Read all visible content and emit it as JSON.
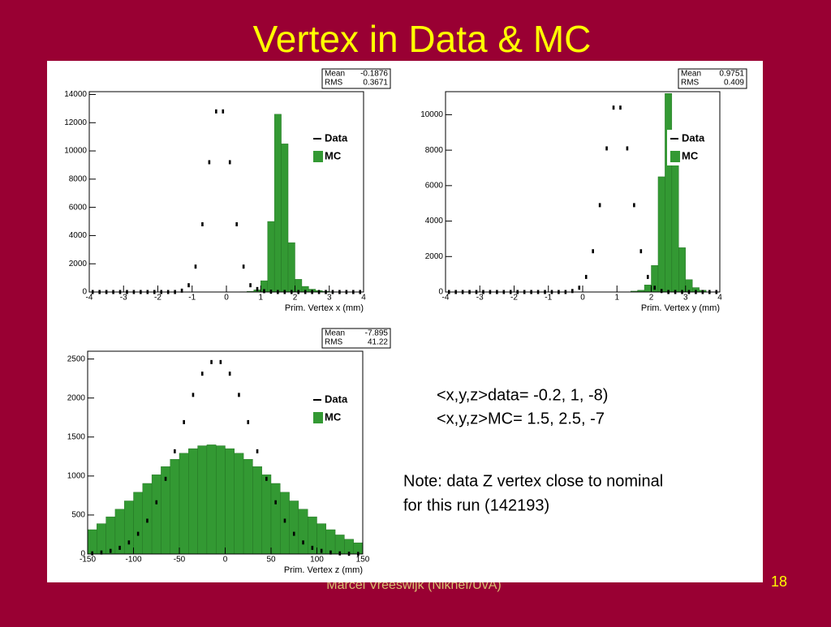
{
  "title": "Vertex in Data & MC",
  "chart_data": [
    {
      "type": "histogram",
      "xlabel": "Prim. Vertex x (mm)",
      "bins": [
        -4,
        -3.8,
        -3.6,
        -3.4,
        -3.2,
        -3,
        -2.8,
        -2.6,
        -2.4,
        -2.2,
        -2,
        -1.8,
        -1.6,
        -1.4,
        -1.2,
        -1,
        -0.8,
        -0.6,
        -0.4,
        -0.2,
        0,
        0.2,
        0.4,
        0.6,
        0.8,
        1,
        1.2,
        1.4,
        1.6,
        1.8,
        2,
        2.2,
        2.4,
        2.6,
        2.8,
        3,
        3.2,
        3.4,
        3.6,
        3.8,
        4
      ],
      "series": [
        {
          "name": "Data",
          "color": "#000000",
          "style": "points",
          "values": [
            0,
            0,
            0,
            0,
            0,
            0,
            0,
            0,
            0,
            0,
            0,
            0,
            0,
            95,
            480,
            1800,
            4800,
            9200,
            12800,
            12800,
            9200,
            4800,
            1800,
            480,
            210,
            60,
            20,
            0,
            0,
            0,
            0,
            0,
            0,
            0,
            0,
            0,
            0,
            0,
            0,
            0
          ]
        },
        {
          "name": "MC",
          "color": "#339933",
          "style": "filled",
          "values": [
            0,
            0,
            0,
            0,
            0,
            0,
            0,
            0,
            0,
            0,
            0,
            0,
            0,
            0,
            0,
            0,
            0,
            0,
            0,
            0,
            0,
            0,
            20,
            50,
            150,
            800,
            5000,
            12600,
            10500,
            3500,
            900,
            400,
            200,
            100,
            50,
            20,
            0,
            0,
            0,
            0
          ]
        }
      ],
      "xlim": [
        -4,
        4
      ],
      "xticks": [
        -4,
        -3,
        -2,
        -1,
        0,
        1,
        2,
        3,
        4
      ],
      "ylim": [
        0,
        14200
      ],
      "yticks": [
        0,
        2000,
        4000,
        6000,
        8000,
        10000,
        12000,
        14000
      ],
      "stats": [
        {
          "label": "Mean",
          "value": -0.1876
        },
        {
          "label": "RMS",
          "value": 0.3671
        }
      ]
    },
    {
      "type": "histogram",
      "xlabel": "Prim. Vertex y (mm)",
      "bins": [
        -4,
        -3.8,
        -3.6,
        -3.4,
        -3.2,
        -3,
        -2.8,
        -2.6,
        -2.4,
        -2.2,
        -2,
        -1.8,
        -1.6,
        -1.4,
        -1.2,
        -1,
        -0.8,
        -0.6,
        -0.4,
        -0.2,
        0,
        0.2,
        0.4,
        0.6,
        0.8,
        1,
        1.2,
        1.4,
        1.6,
        1.8,
        2,
        2.2,
        2.4,
        2.6,
        2.8,
        3,
        3.2,
        3.4,
        3.6,
        3.8,
        4
      ],
      "series": [
        {
          "name": "Data",
          "color": "#000000",
          "style": "points",
          "values": [
            0,
            0,
            0,
            0,
            0,
            0,
            0,
            0,
            0,
            0,
            0,
            0,
            0,
            0,
            0,
            0,
            0,
            0,
            55,
            240,
            850,
            2300,
            4900,
            8100,
            10400,
            10400,
            8100,
            4900,
            2300,
            850,
            240,
            55,
            0,
            0,
            0,
            0,
            0,
            0,
            0,
            0
          ]
        },
        {
          "name": "MC",
          "color": "#339933",
          "style": "filled",
          "values": [
            0,
            0,
            0,
            0,
            0,
            0,
            0,
            0,
            0,
            0,
            0,
            0,
            0,
            0,
            0,
            0,
            0,
            0,
            0,
            0,
            0,
            0,
            0,
            0,
            0,
            0,
            0,
            50,
            100,
            400,
            1500,
            6500,
            11200,
            8500,
            2500,
            700,
            250,
            100,
            0,
            0
          ]
        }
      ],
      "xlim": [
        -4,
        4
      ],
      "xticks": [
        -4,
        -3,
        -2,
        -1,
        0,
        1,
        2,
        3,
        4
      ],
      "ylim": [
        0,
        11300
      ],
      "yticks": [
        0,
        2000,
        4000,
        6000,
        8000,
        10000
      ],
      "stats": [
        {
          "label": "Mean",
          "value": 0.9751
        },
        {
          "label": "RMS",
          "value": 0.409
        }
      ]
    },
    {
      "type": "histogram",
      "xlabel": "Prim. Vertex z (mm)",
      "bins": [
        -150,
        -140,
        -130,
        -120,
        -110,
        -100,
        -90,
        -80,
        -70,
        -60,
        -50,
        -40,
        -30,
        -20,
        -10,
        0,
        10,
        20,
        30,
        40,
        50,
        60,
        70,
        80,
        90,
        100,
        110,
        120,
        130,
        140,
        150
      ],
      "series": [
        {
          "name": "Data",
          "color": "#000000",
          "style": "points",
          "values": [
            8,
            19,
            40,
            79,
            148,
            259,
            427,
            663,
            964,
            1317,
            1691,
            2040,
            2312,
            2461,
            2461,
            2312,
            2040,
            1691,
            1317,
            964,
            663,
            427,
            259,
            148,
            79,
            40,
            19,
            8,
            3,
            1
          ]
        },
        {
          "name": "MC",
          "color": "#339933",
          "style": "filled",
          "values": [
            312,
            389,
            477,
            575,
            681,
            792,
            905,
            1016,
            1121,
            1214,
            1292,
            1351,
            1388,
            1400,
            1388,
            1351,
            1292,
            1214,
            1121,
            1016,
            905,
            792,
            681,
            575,
            477,
            389,
            312,
            245,
            189,
            144
          ]
        }
      ],
      "xlim": [
        -150,
        150
      ],
      "xticks": [
        -150,
        -100,
        -50,
        0,
        50,
        100,
        150
      ],
      "ylim": [
        0,
        2600
      ],
      "yticks": [
        0,
        500,
        1000,
        1500,
        2000,
        2500
      ],
      "stats": [
        {
          "label": "Mean",
          "value": -7.895
        },
        {
          "label": "RMS",
          "value": 41.22
        }
      ]
    }
  ],
  "text": {
    "lines": [
      "<x,y,z>data= -0.2, 1, -8)",
      "<x,y,z>MC= 1.5, 2.5, -7"
    ],
    "note": [
      "Note: data Z vertex close to nominal",
      "for this run (142193)"
    ]
  },
  "footer": "Marcel Vreeswijk (Nikhef/UvA)",
  "page_number": "18"
}
